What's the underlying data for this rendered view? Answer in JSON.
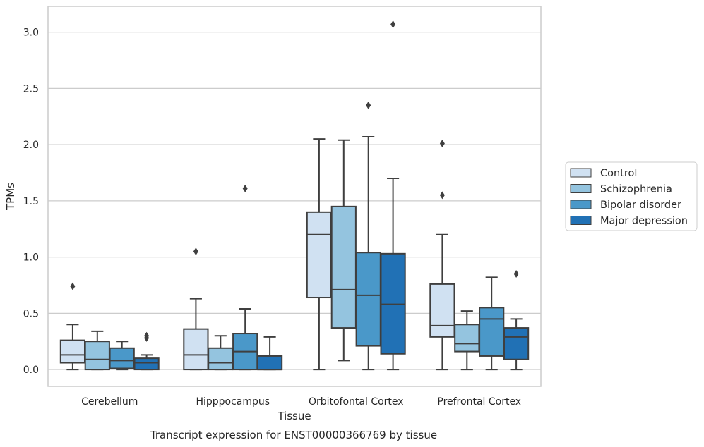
{
  "chart_data": {
    "type": "boxplot",
    "title": "Transcript expression for ENST00000366769 by tissue",
    "xlabel": "Tissue",
    "ylabel": "TPMs",
    "ylim": [
      -0.15,
      3.23
    ],
    "yticks": [
      "0.0",
      "0.5",
      "1.0",
      "1.5",
      "2.0",
      "2.5",
      "3.0"
    ],
    "grid": "horizontal",
    "legend_position": "right",
    "categories": [
      "Cerebellum",
      "Hipppocampus",
      "Orbitofontal Cortex",
      "Prefrontal Cortex"
    ],
    "series": [
      {
        "name": "Control",
        "color": "#d0e1f2",
        "boxes": [
          {
            "whislo": 0.0,
            "q1": 0.06,
            "med": 0.13,
            "q3": 0.26,
            "whishi": 0.4,
            "fliers": [
              0.74
            ]
          },
          {
            "whislo": 0.0,
            "q1": 0.0,
            "med": 0.13,
            "q3": 0.36,
            "whishi": 0.63,
            "fliers": [
              1.05
            ]
          },
          {
            "whislo": 0.0,
            "q1": 0.64,
            "med": 1.2,
            "q3": 1.4,
            "whishi": 2.05,
            "fliers": []
          },
          {
            "whislo": 0.0,
            "q1": 0.29,
            "med": 0.39,
            "q3": 0.76,
            "whishi": 1.2,
            "fliers": [
              1.55,
              2.01
            ]
          }
        ]
      },
      {
        "name": "Schizophrenia",
        "color": "#94c4df",
        "boxes": [
          {
            "whislo": 0.0,
            "q1": 0.0,
            "med": 0.09,
            "q3": 0.25,
            "whishi": 0.34,
            "fliers": []
          },
          {
            "whislo": 0.0,
            "q1": 0.0,
            "med": 0.06,
            "q3": 0.19,
            "whishi": 0.3,
            "fliers": []
          },
          {
            "whislo": 0.08,
            "q1": 0.37,
            "med": 0.71,
            "q3": 1.45,
            "whishi": 2.04,
            "fliers": []
          },
          {
            "whislo": 0.0,
            "q1": 0.16,
            "med": 0.23,
            "q3": 0.4,
            "whishi": 0.52,
            "fliers": []
          }
        ]
      },
      {
        "name": "Bipolar disorder",
        "color": "#4a98c9",
        "boxes": [
          {
            "whislo": 0.0,
            "q1": 0.01,
            "med": 0.08,
            "q3": 0.19,
            "whishi": 0.25,
            "fliers": []
          },
          {
            "whislo": 0.0,
            "q1": 0.0,
            "med": 0.16,
            "q3": 0.32,
            "whishi": 0.54,
            "fliers": [
              1.61
            ]
          },
          {
            "whislo": 0.0,
            "q1": 0.21,
            "med": 0.66,
            "q3": 1.04,
            "whishi": 2.07,
            "fliers": [
              2.35
            ]
          },
          {
            "whislo": 0.0,
            "q1": 0.12,
            "med": 0.45,
            "q3": 0.55,
            "whishi": 0.82,
            "fliers": []
          }
        ]
      },
      {
        "name": "Major depression",
        "color": "#2171b5",
        "boxes": [
          {
            "whislo": 0.0,
            "q1": 0.0,
            "med": 0.06,
            "q3": 0.1,
            "whishi": 0.13,
            "fliers": [
              0.28,
              0.3
            ]
          },
          {
            "whislo": 0.0,
            "q1": 0.0,
            "med": 0.0,
            "q3": 0.12,
            "whishi": 0.29,
            "fliers": []
          },
          {
            "whislo": 0.0,
            "q1": 0.14,
            "med": 0.58,
            "q3": 1.03,
            "whishi": 1.7,
            "fliers": [
              3.07
            ]
          },
          {
            "whislo": 0.0,
            "q1": 0.09,
            "med": 0.29,
            "q3": 0.37,
            "whishi": 0.45,
            "fliers": [
              0.85
            ]
          }
        ]
      }
    ]
  }
}
